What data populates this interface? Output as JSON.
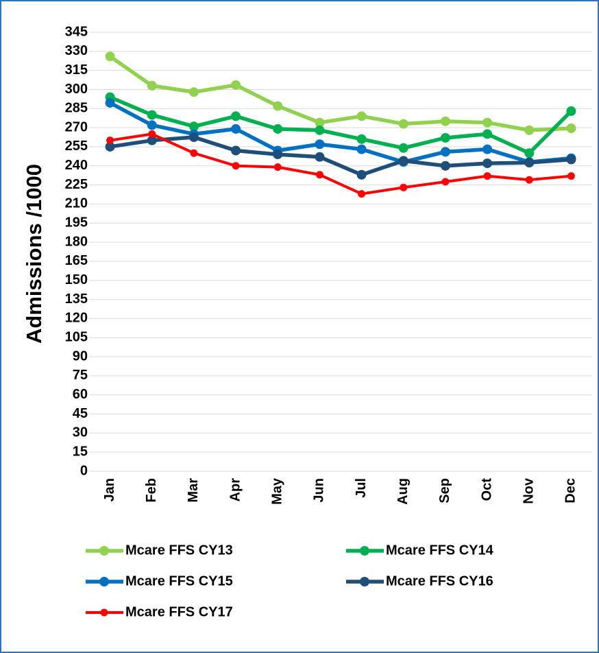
{
  "chart_data": {
    "type": "line",
    "y_label": "Admissions /1000",
    "categories": [
      "Jan",
      "Feb",
      "Mar",
      "Apr",
      "May",
      "Jun",
      "Jul",
      "Aug",
      "Sep",
      "Oct",
      "Nov",
      "Dec"
    ],
    "series": [
      {
        "name": "Mcare FFS CY13",
        "color": "#92d050",
        "values": [
          326,
          303,
          298,
          303.5,
          287,
          274,
          279,
          273,
          275,
          274,
          268,
          269.5
        ]
      },
      {
        "name": "Mcare FFS CY14",
        "color": "#00b050",
        "values": [
          294,
          280,
          271,
          279,
          269,
          268,
          261,
          254,
          262,
          265,
          250,
          283
        ]
      },
      {
        "name": "Mcare FFS CY15",
        "color": "#0070c0",
        "values": [
          289.5,
          272,
          265,
          269,
          252,
          257,
          253,
          243,
          251,
          253,
          243,
          246
        ]
      },
      {
        "name": "Mcare FFS CY16",
        "color": "#1f4e79",
        "values": [
          255,
          260,
          262.5,
          252,
          249,
          247,
          233,
          244,
          240,
          242,
          242.5,
          245
        ]
      },
      {
        "name": "Mcare FFS CY17",
        "color": "#ff0000",
        "values": [
          260,
          265,
          250,
          240,
          239,
          233,
          218,
          223,
          227.5,
          232,
          229,
          232
        ]
      }
    ],
    "ylim": [
      0,
      345
    ],
    "yticks": [
      0,
      15,
      30,
      45,
      60,
      75,
      90,
      105,
      120,
      135,
      150,
      165,
      180,
      195,
      210,
      225,
      240,
      255,
      270,
      285,
      300,
      315,
      330,
      345
    ],
    "grid": true,
    "legend": "bottom"
  }
}
